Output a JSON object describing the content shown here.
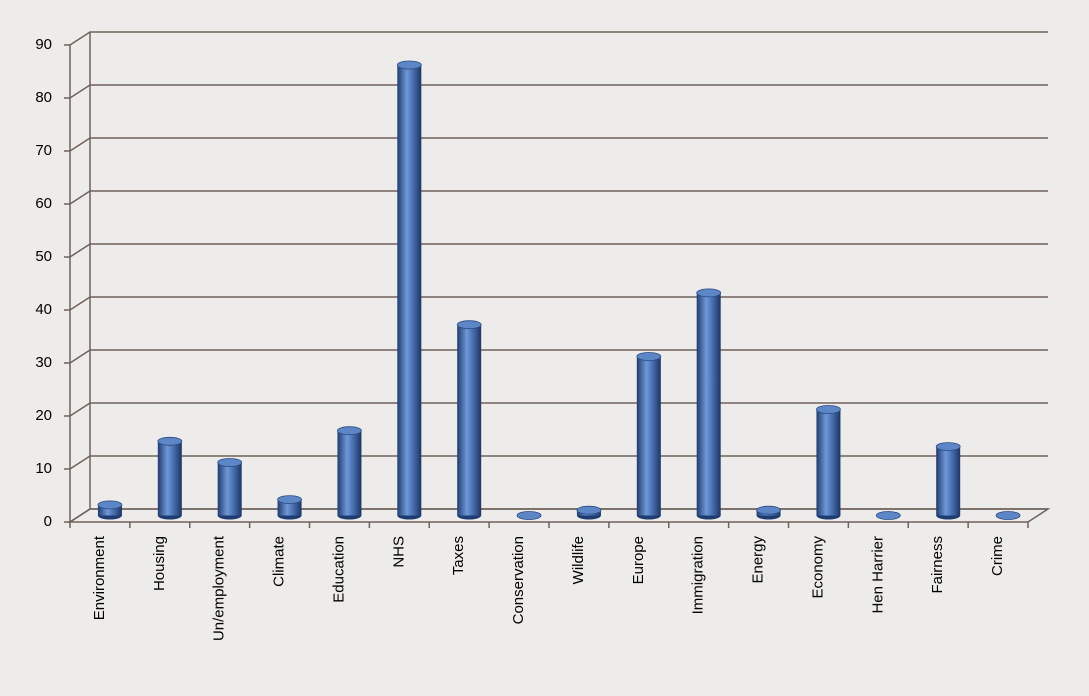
{
  "chart_data": {
    "type": "bar",
    "categories": [
      "Environment",
      "Housing",
      "Un/employment",
      "Climate",
      "Education",
      "NHS",
      "Taxes",
      "Conservation",
      "Wildlife",
      "Europe",
      "Immigration",
      "Energy",
      "Economy",
      "Hen Harrier",
      "Fairness",
      "Crime"
    ],
    "values": [
      2,
      14,
      10,
      3,
      16,
      85,
      36,
      0,
      1,
      30,
      42,
      1,
      20,
      0,
      13,
      0
    ],
    "color": "#3d66a8",
    "ylim": [
      0,
      90
    ],
    "yticks": [
      0,
      10,
      20,
      30,
      40,
      50,
      60,
      70,
      80,
      90
    ],
    "grid": true
  }
}
